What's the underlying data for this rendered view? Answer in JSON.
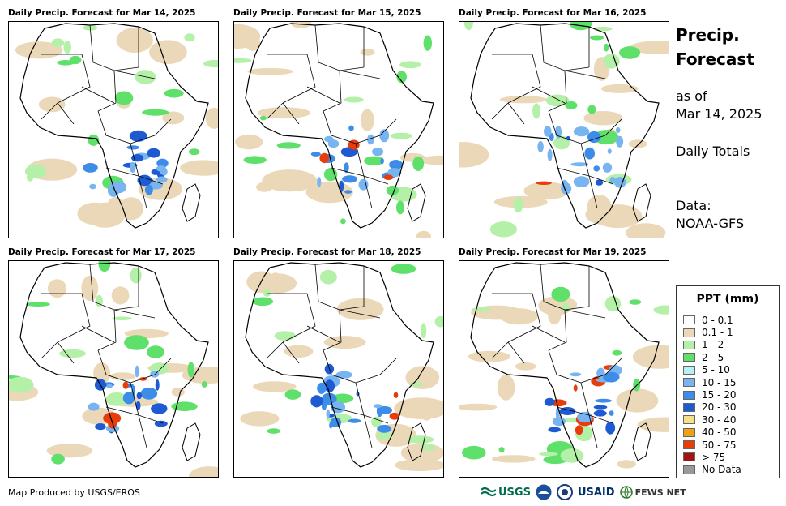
{
  "panels": [
    {
      "title": "Daily Precip. Forecast for Mar 14, 2025"
    },
    {
      "title": "Daily Precip. Forecast for Mar 15, 2025"
    },
    {
      "title": "Daily Precip. Forecast for Mar 16, 2025"
    },
    {
      "title": "Daily Precip. Forecast for Mar 17, 2025"
    },
    {
      "title": "Daily Precip. Forecast for Mar 18, 2025"
    },
    {
      "title": "Daily Precip. Forecast for Mar 19, 2025"
    }
  ],
  "side": {
    "title_line1": "Precip.",
    "title_line2": "Forecast",
    "asof_line1": "as of",
    "asof_line2": "Mar 14, 2025",
    "totals": "Daily Totals",
    "data_line1": "Data:",
    "data_line2": "NOAA-GFS"
  },
  "legend": {
    "title": "PPT (mm)",
    "items": [
      {
        "label": "0 - 0.1",
        "color": "#ffffff"
      },
      {
        "label": "0.1 - 1",
        "color": "#ebd8b8"
      },
      {
        "label": "1 - 2",
        "color": "#b5f0a8"
      },
      {
        "label": "2 - 5",
        "color": "#5fe06a"
      },
      {
        "label": "5 - 10",
        "color": "#b8f0f4"
      },
      {
        "label": "10 - 15",
        "color": "#78b4f0"
      },
      {
        "label": "15 - 20",
        "color": "#3c8ce8"
      },
      {
        "label": "20 - 30",
        "color": "#1e5ad2"
      },
      {
        "label": "30 - 40",
        "color": "#f5e08a"
      },
      {
        "label": "40 - 50",
        "color": "#f0a014"
      },
      {
        "label": "50 - 75",
        "color": "#e83c0a"
      },
      {
        "label": "> 75",
        "color": "#a01414"
      },
      {
        "label": "No Data",
        "color": "#999999"
      }
    ]
  },
  "footer": {
    "credit": "Map Produced by USGS/EROS"
  },
  "logos": {
    "usgs": "USGS",
    "usaid": "USAID",
    "fewsnet": "FEWS NET"
  }
}
